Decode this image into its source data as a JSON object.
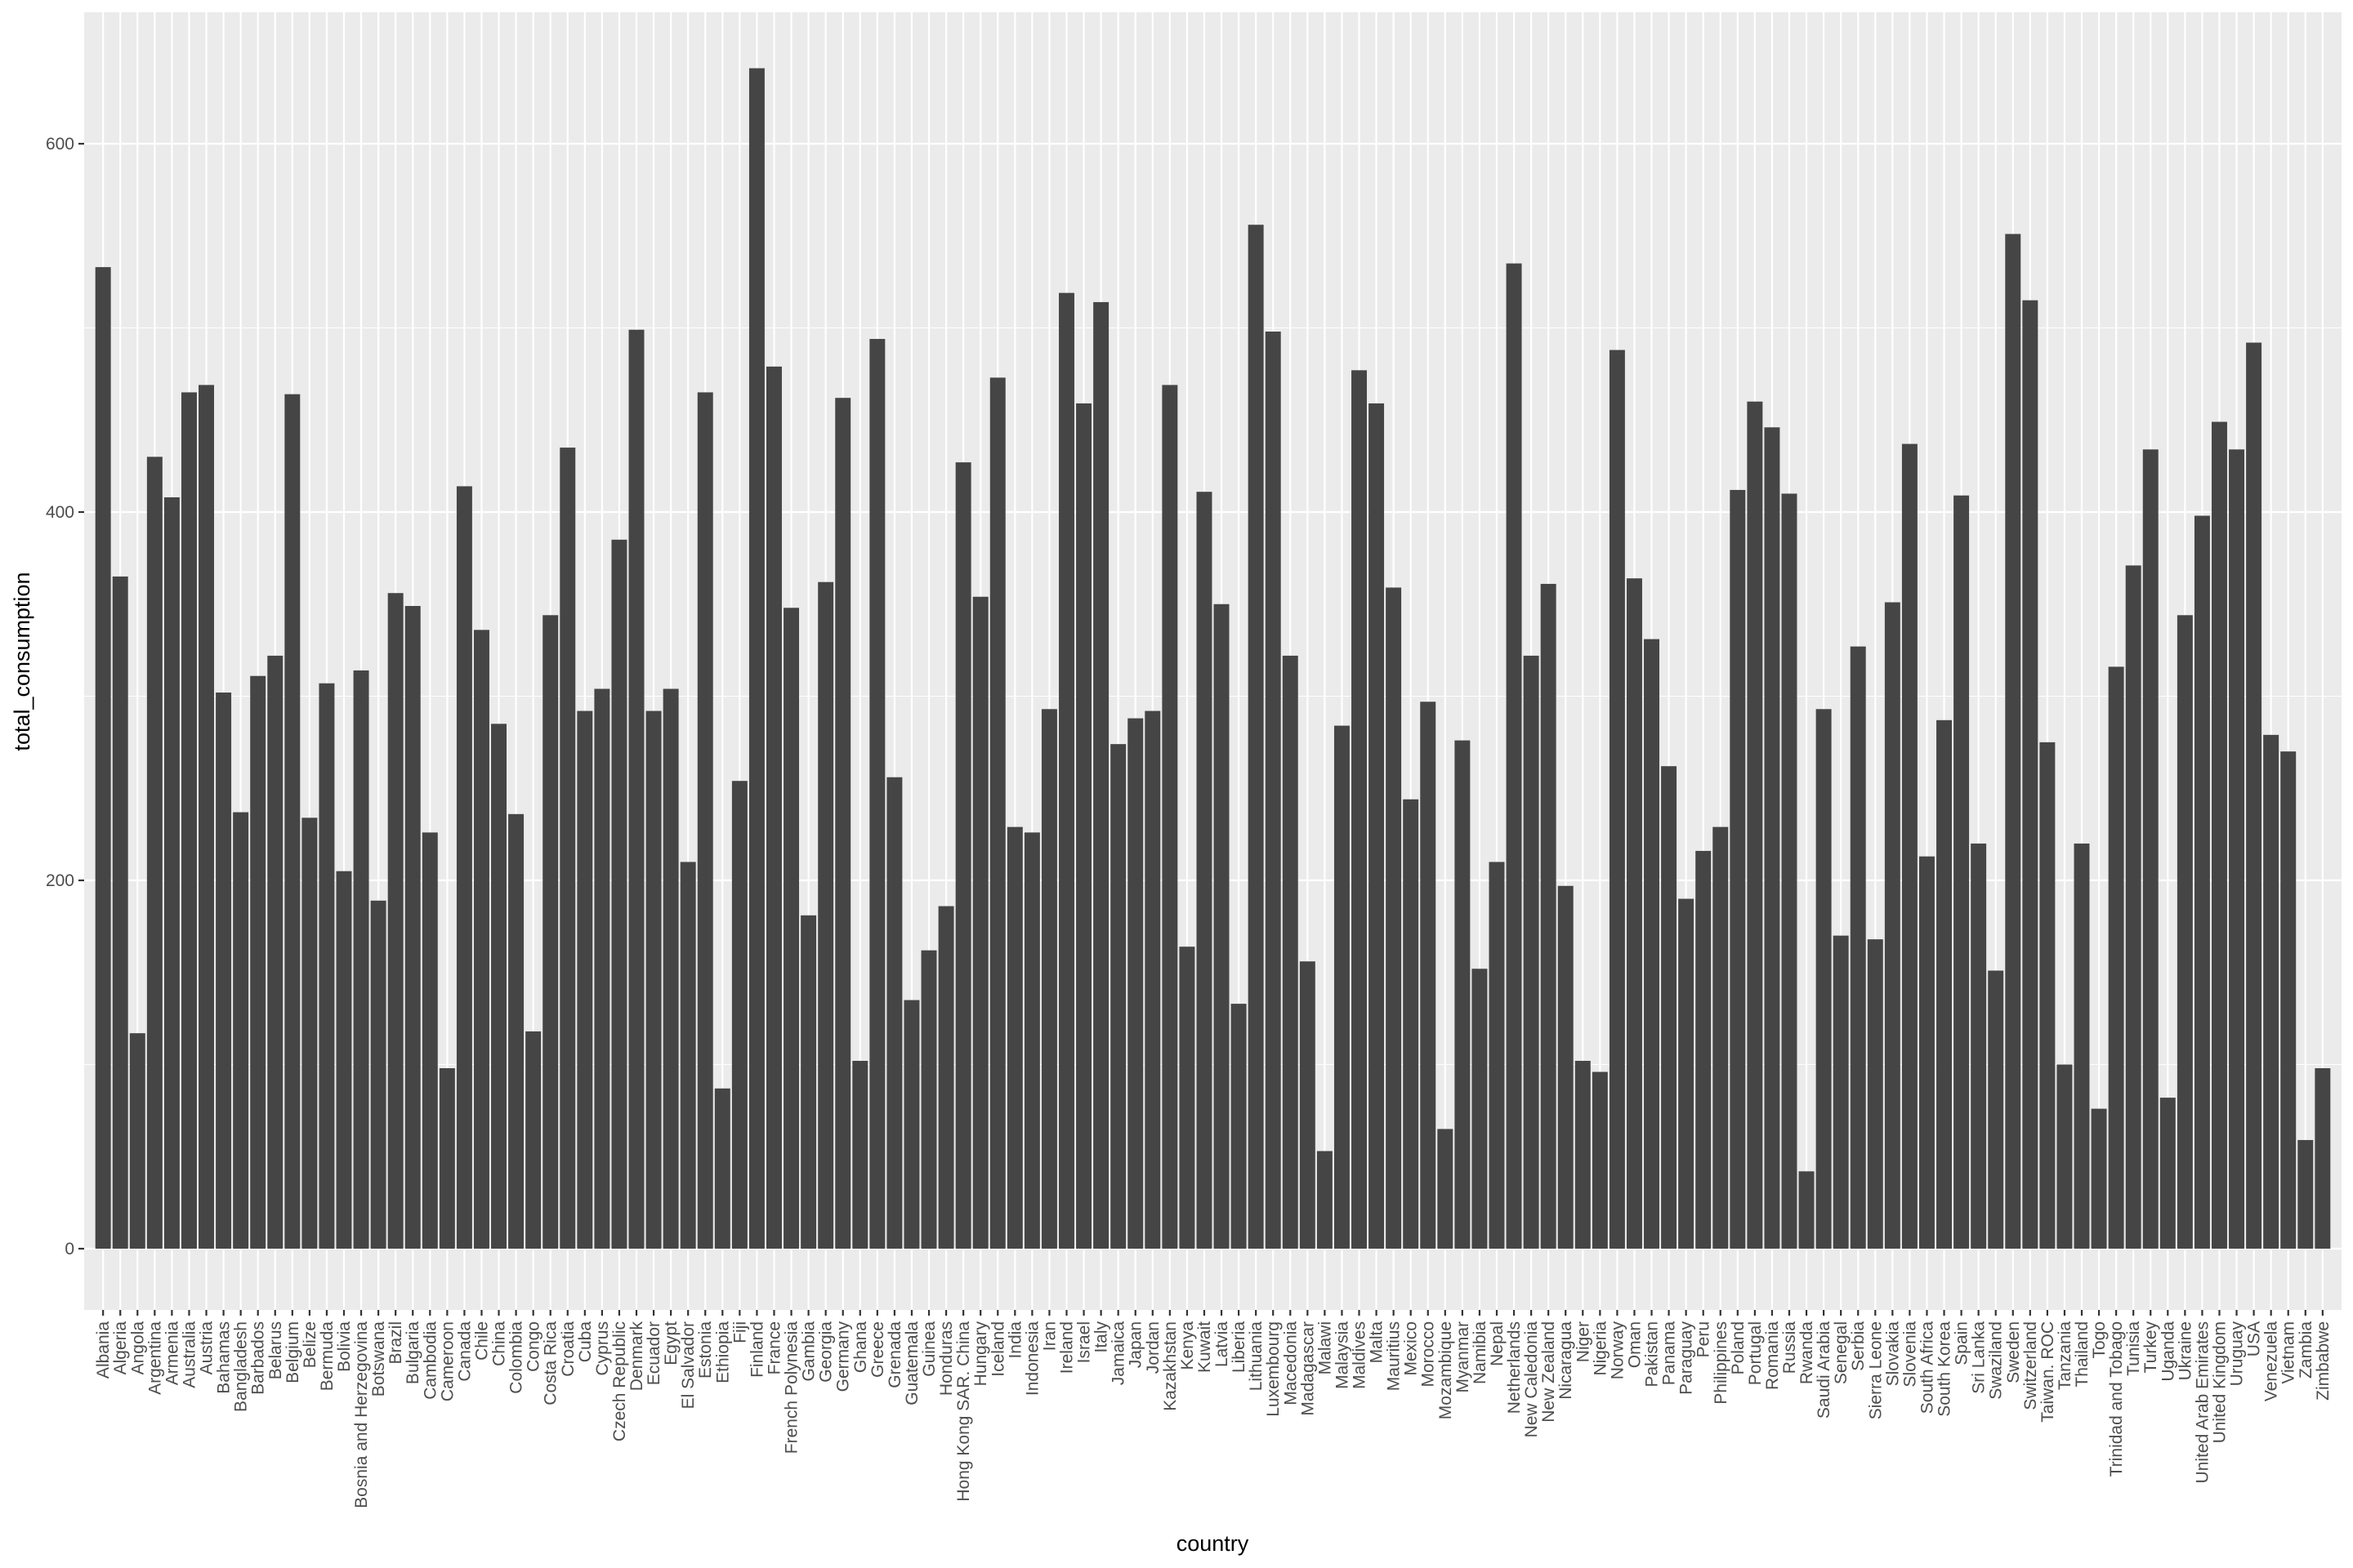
{
  "chart_data": {
    "type": "bar",
    "xlabel": "country",
    "ylabel": "total_consumption",
    "ylim": [
      -32,
      670
    ],
    "yticks": [
      0,
      200,
      400,
      600
    ],
    "grid": true,
    "colors": {
      "bar": "#454545",
      "panel": "#ebebeb",
      "grid": "#ffffff"
    },
    "categories": [
      "Albania",
      "Algeria",
      "Angola",
      "Argentina",
      "Armenia",
      "Australia",
      "Austria",
      "Bahamas",
      "Bangladesh",
      "Barbados",
      "Belarus",
      "Belgium",
      "Belize",
      "Bermuda",
      "Bolivia",
      "Bosnia and Herzegovina",
      "Botswana",
      "Brazil",
      "Bulgaria",
      "Cambodia",
      "Cameroon",
      "Canada",
      "Chile",
      "China",
      "Colombia",
      "Congo",
      "Costa Rica",
      "Croatia",
      "Cuba",
      "Cyprus",
      "Czech Republic",
      "Denmark",
      "Ecuador",
      "Egypt",
      "El Salvador",
      "Estonia",
      "Ethiopia",
      "Fiji",
      "Finland",
      "France",
      "French Polynesia",
      "Gambia",
      "Georgia",
      "Germany",
      "Ghana",
      "Greece",
      "Grenada",
      "Guatemala",
      "Guinea",
      "Honduras",
      "Hong Kong SAR. China",
      "Hungary",
      "Iceland",
      "India",
      "Indonesia",
      "Iran",
      "Ireland",
      "Israel",
      "Italy",
      "Jamaica",
      "Japan",
      "Jordan",
      "Kazakhstan",
      "Kenya",
      "Kuwait",
      "Latvia",
      "Liberia",
      "Lithuania",
      "Luxembourg",
      "Macedonia",
      "Madagascar",
      "Malawi",
      "Malaysia",
      "Maldives",
      "Malta",
      "Mauritius",
      "Mexico",
      "Morocco",
      "Mozambique",
      "Myanmar",
      "Namibia",
      "Nepal",
      "Netherlands",
      "New Caledonia",
      "New Zealand",
      "Nicaragua",
      "Niger",
      "Nigeria",
      "Norway",
      "Oman",
      "Pakistan",
      "Panama",
      "Paraguay",
      "Peru",
      "Philippines",
      "Poland",
      "Portugal",
      "Romania",
      "Russia",
      "Rwanda",
      "Saudi Arabia",
      "Senegal",
      "Serbia",
      "Sierra Leone",
      "Slovakia",
      "Slovenia",
      "South Africa",
      "South Korea",
      "Spain",
      "Sri Lanka",
      "Swaziland",
      "Sweden",
      "Switzerland",
      "Taiwan. ROC",
      "Tanzania",
      "Thailand",
      "Togo",
      "Trinidad and Tobago",
      "Tunisia",
      "Turkey",
      "Uganda",
      "Ukraine",
      "United Arab Emirates",
      "United Kingdom",
      "Uruguay",
      "USA",
      "Venezuela",
      "Vietnam",
      "Zambia",
      "Zimbabwe"
    ],
    "values": [
      533,
      365,
      117,
      430,
      408,
      465,
      469,
      302,
      237,
      311,
      322,
      464,
      234,
      307,
      205,
      314,
      189,
      356,
      349,
      226,
      98,
      414,
      336,
      285,
      236,
      118,
      344,
      435,
      292,
      304,
      385,
      499,
      292,
      304,
      210,
      465,
      87,
      254,
      641,
      479,
      348,
      181,
      362,
      462,
      102,
      494,
      256,
      135,
      162,
      186,
      427,
      354,
      473,
      229,
      226,
      293,
      519,
      459,
      514,
      274,
      288,
      292,
      469,
      164,
      411,
      350,
      133,
      556,
      498,
      322,
      156,
      53,
      284,
      477,
      459,
      359,
      244,
      297,
      65,
      276,
      152,
      210,
      535,
      322,
      361,
      197,
      102,
      96,
      488,
      364,
      331,
      262,
      190,
      216,
      229,
      412,
      460,
      446,
      410,
      42,
      293,
      170,
      327,
      168,
      351,
      437,
      213,
      287,
      409,
      220,
      151,
      551,
      515,
      275,
      100,
      220,
      76,
      316,
      371,
      434,
      82,
      344,
      398,
      449,
      434,
      492,
      279,
      270,
      59,
      98
    ]
  }
}
